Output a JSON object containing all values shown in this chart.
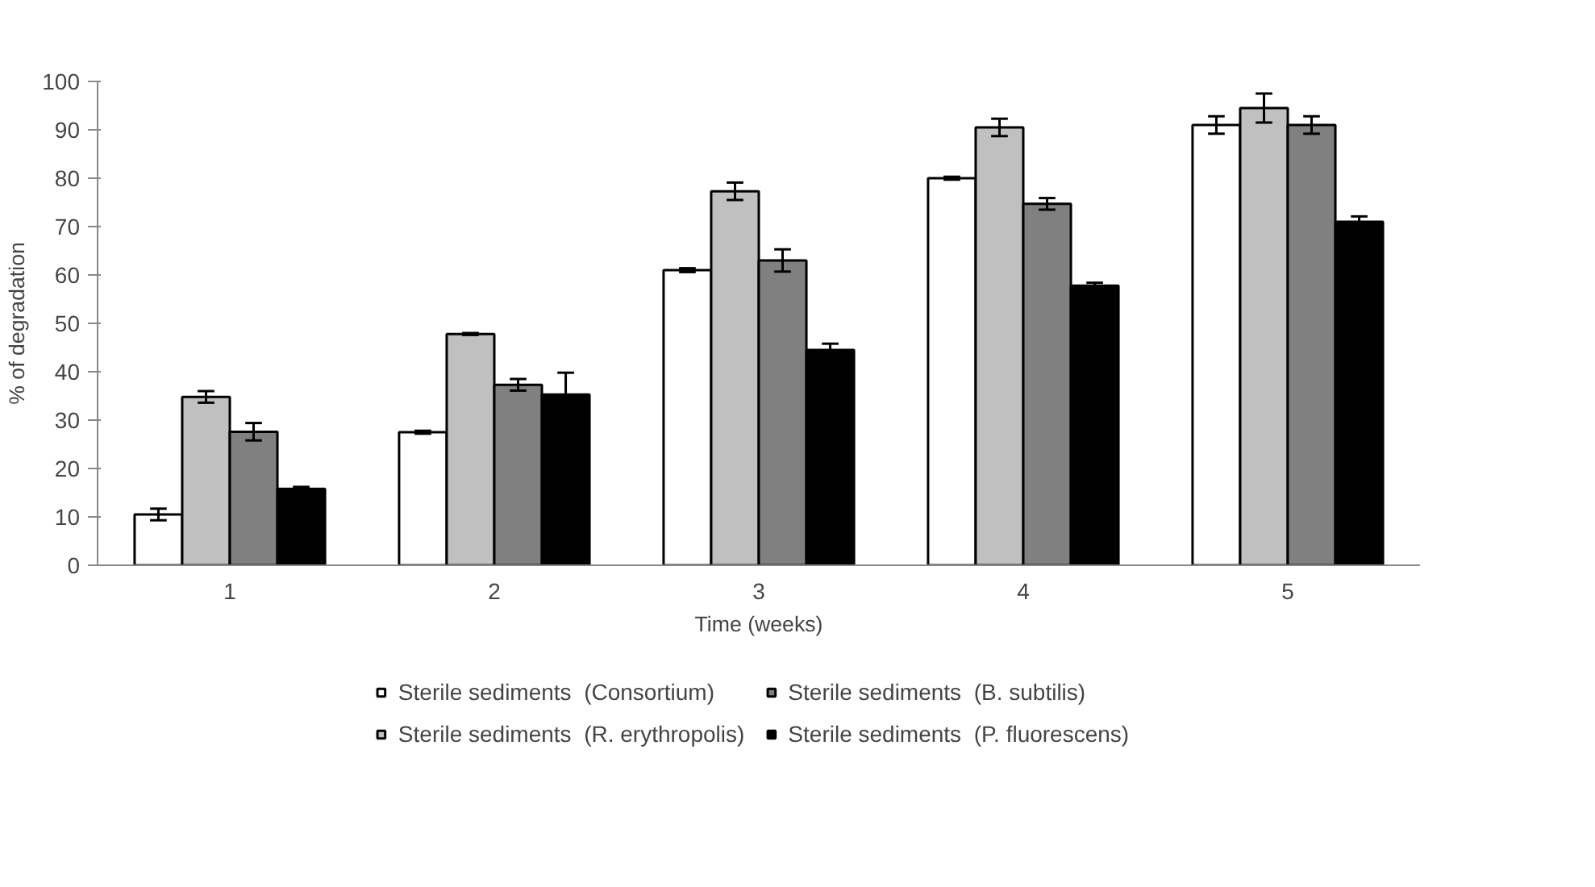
{
  "chart_data": {
    "type": "bar",
    "xlabel": "Time (weeks)",
    "ylabel": "% of degradation",
    "categories": [
      "1",
      "2",
      "3",
      "4",
      "5"
    ],
    "ylim": [
      0,
      100
    ],
    "yticks": [
      0,
      10,
      20,
      30,
      40,
      50,
      60,
      70,
      80,
      90,
      100
    ],
    "grid": false,
    "legend": "bottom",
    "series": [
      {
        "name": "Sterile sediments  (Consortium)",
        "color": "#ffffff",
        "values": [
          10.5,
          27.5,
          61,
          80,
          91
        ],
        "errors": [
          1.2,
          0.3,
          0.4,
          0.3,
          1.8
        ]
      },
      {
        "name": "Sterile sediments  (R. erythropolis)",
        "color": "#c0c0c0",
        "values": [
          34.8,
          47.8,
          77.3,
          90.5,
          94.5
        ],
        "errors": [
          1.2,
          0.2,
          1.8,
          1.8,
          3
        ]
      },
      {
        "name": "Sterile sediments  (B. subtilis)",
        "color": "#808080",
        "values": [
          27.6,
          37.3,
          63,
          74.7,
          91
        ],
        "errors": [
          1.8,
          1.2,
          2.3,
          1.2,
          1.8
        ]
      },
      {
        "name": "Sterile sediments  (P. fluorescens)",
        "color": "#000000",
        "values": [
          15.8,
          35.3,
          44.5,
          57.8,
          71
        ],
        "errors": [
          0.4,
          4.5,
          1.3,
          0.6,
          1.1
        ]
      }
    ]
  }
}
